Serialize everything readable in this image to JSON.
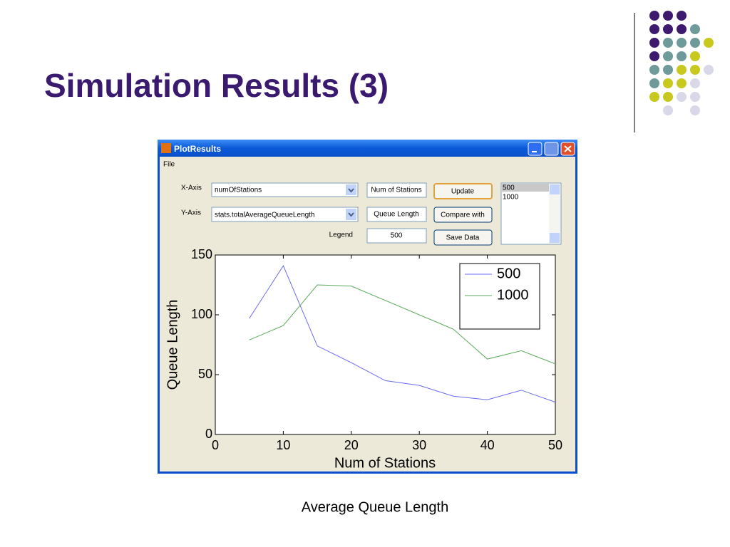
{
  "slide": {
    "title": "Simulation Results (3)",
    "caption": "Average Queue Length"
  },
  "window": {
    "title": "PlotResults",
    "menu": [
      "File"
    ],
    "x_axis_label": "X-Axis",
    "x_axis_value": "numOfStations",
    "y_axis_label": "Y-Axis",
    "y_axis_value": "stats.totalAverageQueueLength",
    "legend_label": "Legend",
    "x_label_input": "Num of Stations",
    "y_label_input": "Queue Length",
    "legend_input": "500",
    "buttons": [
      "Update",
      "Compare with",
      "Save Data"
    ],
    "list": [
      "500",
      "1000"
    ]
  },
  "chart_data": {
    "type": "line",
    "xlabel": "Num of Stations",
    "ylabel": "Queue Length",
    "x": [
      5,
      10,
      15,
      20,
      25,
      30,
      35,
      40,
      45,
      50
    ],
    "series": [
      {
        "name": "500",
        "color": "#6a6af0",
        "values": [
          97,
          141,
          74,
          60,
          45,
          41,
          32,
          29,
          37,
          27
        ]
      },
      {
        "name": "1000",
        "color": "#5aaa5a",
        "values": [
          79,
          91,
          125,
          124,
          112,
          100,
          88,
          63,
          70,
          59
        ]
      }
    ],
    "xlim": [
      0,
      50
    ],
    "ylim": [
      0,
      150
    ],
    "xticks": [
      0,
      10,
      20,
      30,
      40,
      50
    ],
    "yticks": [
      0,
      50,
      100,
      150
    ],
    "legend": "upper right"
  }
}
